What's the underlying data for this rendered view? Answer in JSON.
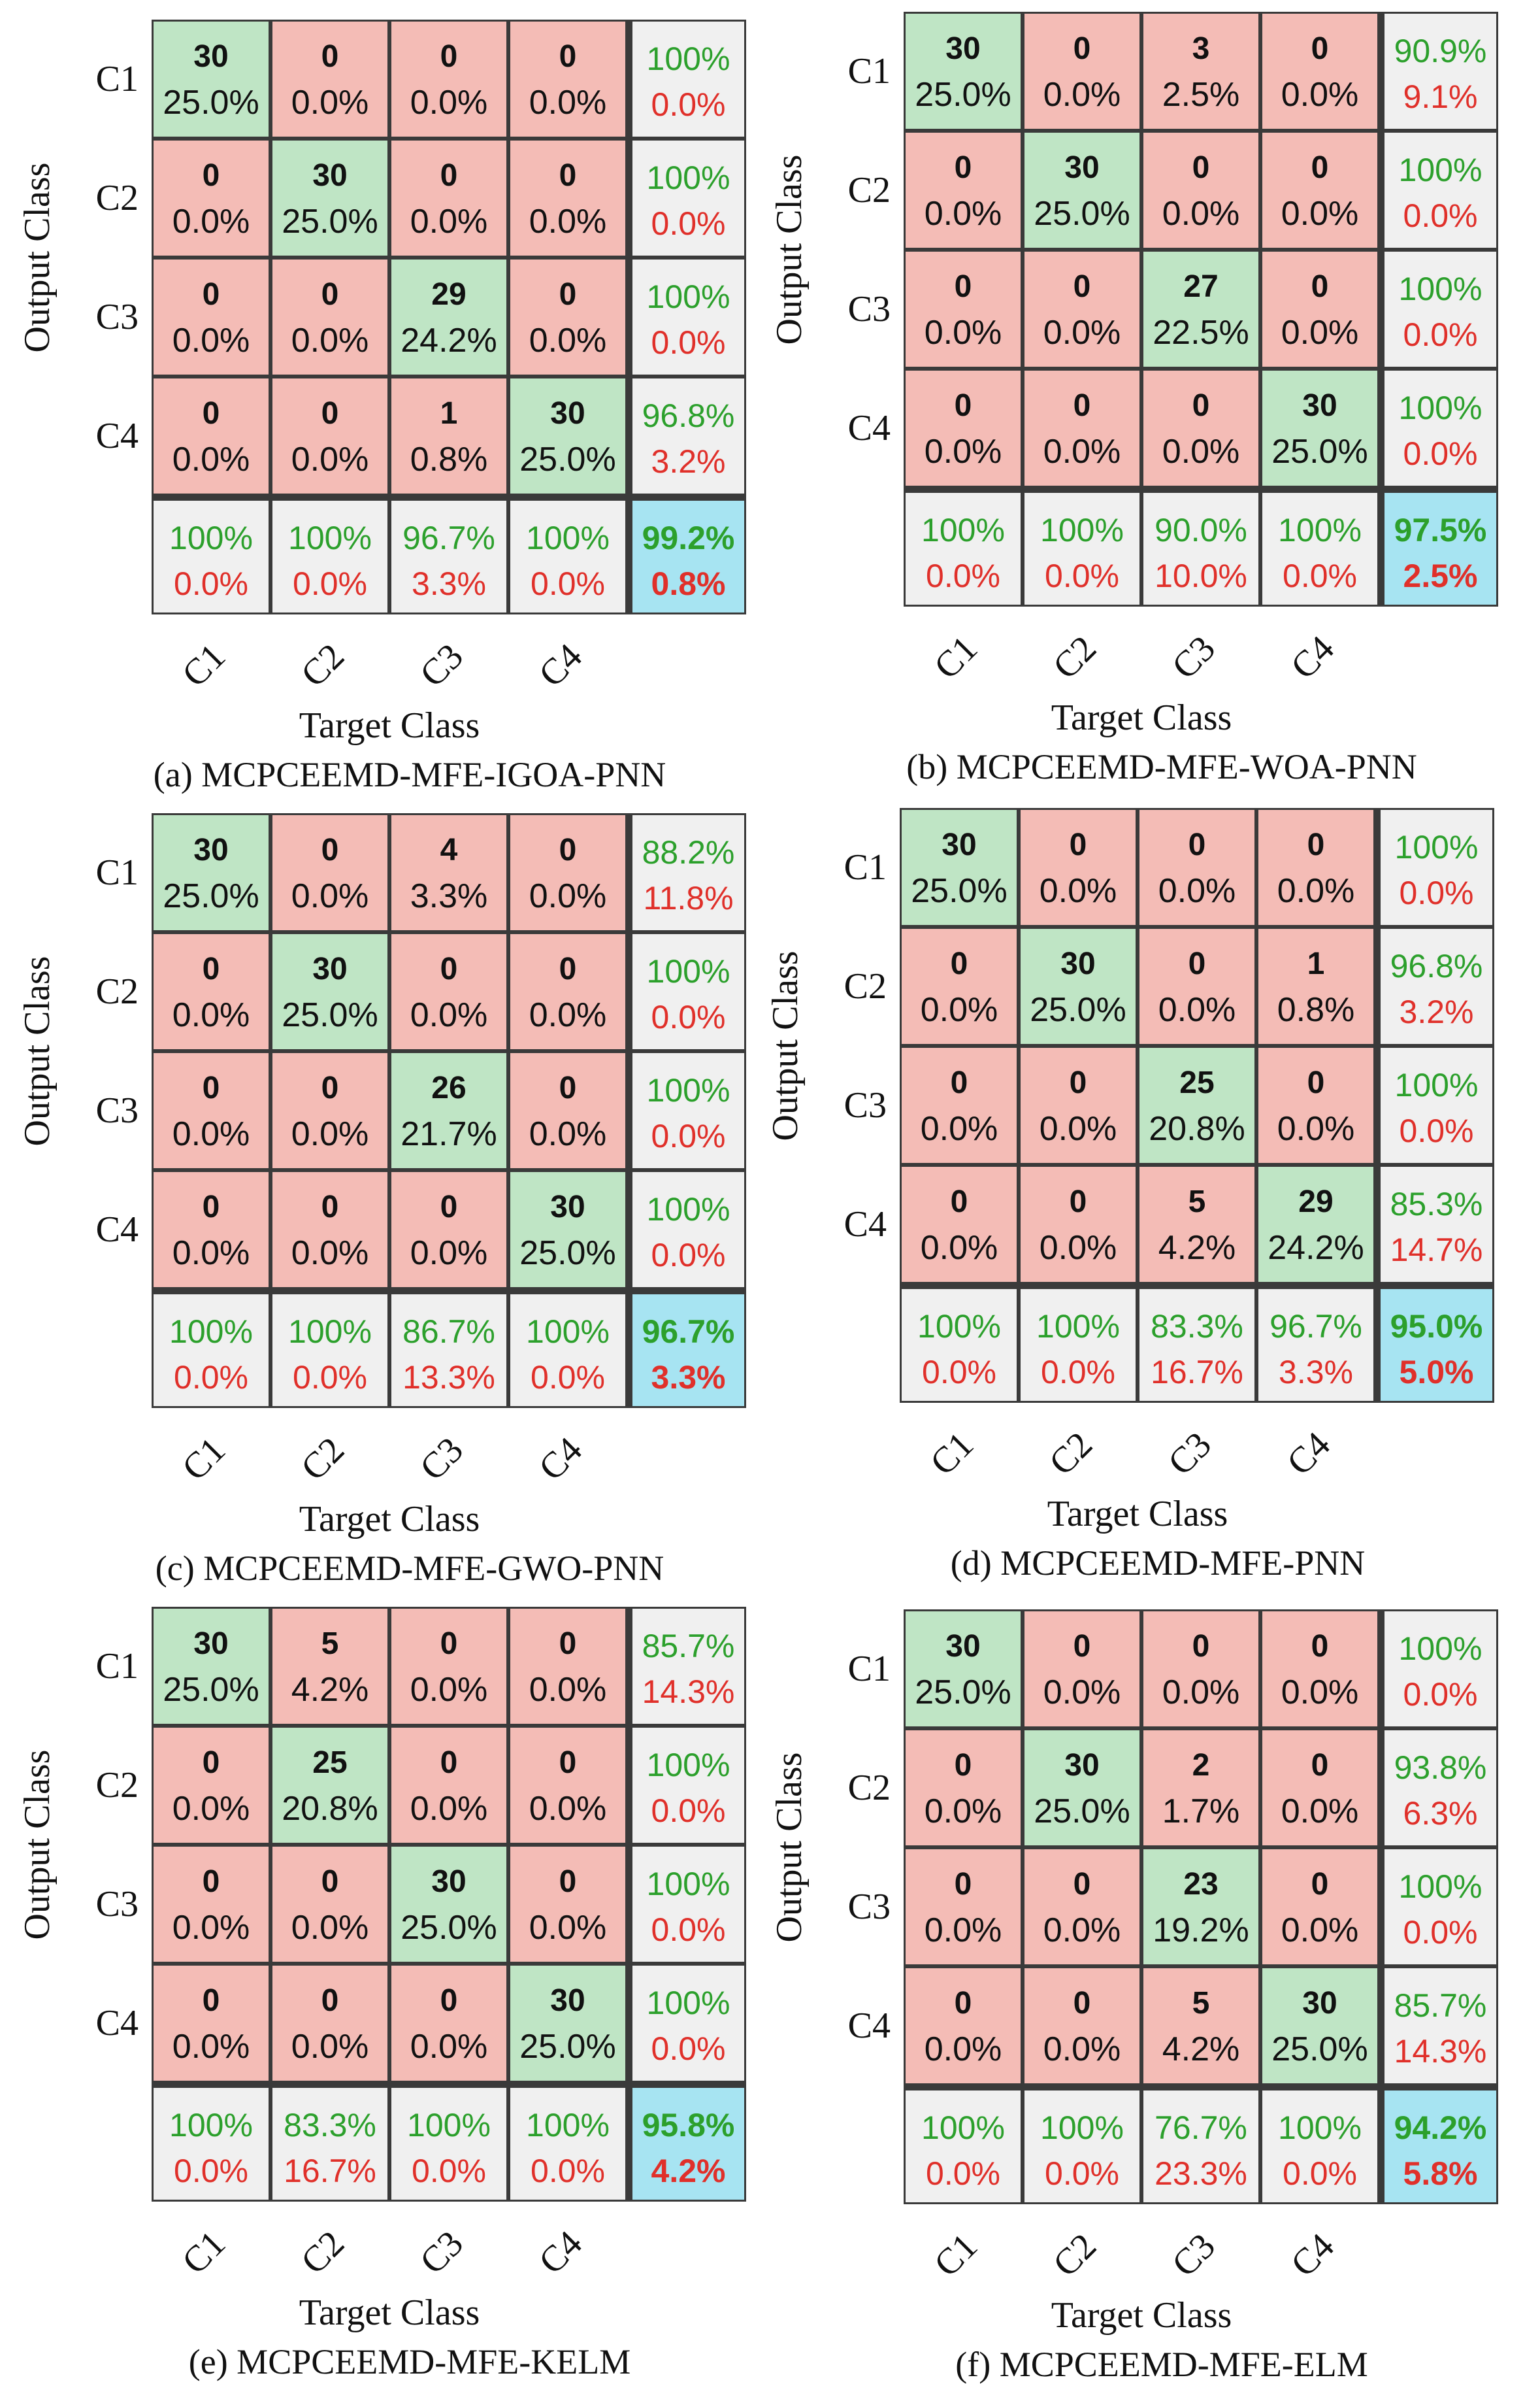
{
  "chart_data": [
    {
      "type": "table",
      "title": "(a) MCPCEEMD-MFE-IGOA-PNN",
      "ylabel": "Output Class",
      "xlabel": "Target Class",
      "row_labels": [
        "C1",
        "C2",
        "C3",
        "C4"
      ],
      "col_labels": [
        "C1",
        "C2",
        "C3",
        "C4"
      ],
      "cells": [
        [
          {
            "n": "30",
            "p": "25.0%"
          },
          {
            "n": "0",
            "p": "0.0%"
          },
          {
            "n": "0",
            "p": "0.0%"
          },
          {
            "n": "0",
            "p": "0.0%"
          }
        ],
        [
          {
            "n": "0",
            "p": "0.0%"
          },
          {
            "n": "30",
            "p": "25.0%"
          },
          {
            "n": "0",
            "p": "0.0%"
          },
          {
            "n": "0",
            "p": "0.0%"
          }
        ],
        [
          {
            "n": "0",
            "p": "0.0%"
          },
          {
            "n": "0",
            "p": "0.0%"
          },
          {
            "n": "29",
            "p": "24.2%"
          },
          {
            "n": "0",
            "p": "0.0%"
          }
        ],
        [
          {
            "n": "0",
            "p": "0.0%"
          },
          {
            "n": "0",
            "p": "0.0%"
          },
          {
            "n": "1",
            "p": "0.8%"
          },
          {
            "n": "30",
            "p": "25.0%"
          }
        ]
      ],
      "row_summary": [
        [
          "100%",
          "0.0%"
        ],
        [
          "100%",
          "0.0%"
        ],
        [
          "100%",
          "0.0%"
        ],
        [
          "96.8%",
          "3.2%"
        ]
      ],
      "col_summary": [
        [
          "100%",
          "0.0%"
        ],
        [
          "100%",
          "0.0%"
        ],
        [
          "96.7%",
          "3.3%"
        ],
        [
          "100%",
          "0.0%"
        ]
      ],
      "overall": [
        "99.2%",
        "0.8%"
      ]
    },
    {
      "type": "table",
      "title": "(b) MCPCEEMD-MFE-WOA-PNN",
      "ylabel": "Output Class",
      "xlabel": "Target Class",
      "row_labels": [
        "C1",
        "C2",
        "C3",
        "C4"
      ],
      "col_labels": [
        "C1",
        "C2",
        "C3",
        "C4"
      ],
      "cells": [
        [
          {
            "n": "30",
            "p": "25.0%"
          },
          {
            "n": "0",
            "p": "0.0%"
          },
          {
            "n": "3",
            "p": "2.5%"
          },
          {
            "n": "0",
            "p": "0.0%"
          }
        ],
        [
          {
            "n": "0",
            "p": "0.0%"
          },
          {
            "n": "30",
            "p": "25.0%"
          },
          {
            "n": "0",
            "p": "0.0%"
          },
          {
            "n": "0",
            "p": "0.0%"
          }
        ],
        [
          {
            "n": "0",
            "p": "0.0%"
          },
          {
            "n": "0",
            "p": "0.0%"
          },
          {
            "n": "27",
            "p": "22.5%"
          },
          {
            "n": "0",
            "p": "0.0%"
          }
        ],
        [
          {
            "n": "0",
            "p": "0.0%"
          },
          {
            "n": "0",
            "p": "0.0%"
          },
          {
            "n": "0",
            "p": "0.0%"
          },
          {
            "n": "30",
            "p": "25.0%"
          }
        ]
      ],
      "row_summary": [
        [
          "90.9%",
          "9.1%"
        ],
        [
          "100%",
          "0.0%"
        ],
        [
          "100%",
          "0.0%"
        ],
        [
          "100%",
          "0.0%"
        ]
      ],
      "col_summary": [
        [
          "100%",
          "0.0%"
        ],
        [
          "100%",
          "0.0%"
        ],
        [
          "90.0%",
          "10.0%"
        ],
        [
          "100%",
          "0.0%"
        ]
      ],
      "overall": [
        "97.5%",
        "2.5%"
      ]
    },
    {
      "type": "table",
      "title": "(c) MCPCEEMD-MFE-GWO-PNN",
      "ylabel": "Output Class",
      "xlabel": "Target Class",
      "row_labels": [
        "C1",
        "C2",
        "C3",
        "C4"
      ],
      "col_labels": [
        "C1",
        "C2",
        "C3",
        "C4"
      ],
      "cells": [
        [
          {
            "n": "30",
            "p": "25.0%"
          },
          {
            "n": "0",
            "p": "0.0%"
          },
          {
            "n": "4",
            "p": "3.3%"
          },
          {
            "n": "0",
            "p": "0.0%"
          }
        ],
        [
          {
            "n": "0",
            "p": "0.0%"
          },
          {
            "n": "30",
            "p": "25.0%"
          },
          {
            "n": "0",
            "p": "0.0%"
          },
          {
            "n": "0",
            "p": "0.0%"
          }
        ],
        [
          {
            "n": "0",
            "p": "0.0%"
          },
          {
            "n": "0",
            "p": "0.0%"
          },
          {
            "n": "26",
            "p": "21.7%"
          },
          {
            "n": "0",
            "p": "0.0%"
          }
        ],
        [
          {
            "n": "0",
            "p": "0.0%"
          },
          {
            "n": "0",
            "p": "0.0%"
          },
          {
            "n": "0",
            "p": "0.0%"
          },
          {
            "n": "30",
            "p": "25.0%"
          }
        ]
      ],
      "row_summary": [
        [
          "88.2%",
          "11.8%"
        ],
        [
          "100%",
          "0.0%"
        ],
        [
          "100%",
          "0.0%"
        ],
        [
          "100%",
          "0.0%"
        ]
      ],
      "col_summary": [
        [
          "100%",
          "0.0%"
        ],
        [
          "100%",
          "0.0%"
        ],
        [
          "86.7%",
          "13.3%"
        ],
        [
          "100%",
          "0.0%"
        ]
      ],
      "overall": [
        "96.7%",
        "3.3%"
      ]
    },
    {
      "type": "table",
      "title": "(d) MCPCEEMD-MFE-PNN",
      "ylabel": "Output Class",
      "xlabel": "Target Class",
      "row_labels": [
        "C1",
        "C2",
        "C3",
        "C4"
      ],
      "col_labels": [
        "C1",
        "C2",
        "C3",
        "C4"
      ],
      "cells": [
        [
          {
            "n": "30",
            "p": "25.0%"
          },
          {
            "n": "0",
            "p": "0.0%"
          },
          {
            "n": "0",
            "p": "0.0%"
          },
          {
            "n": "0",
            "p": "0.0%"
          }
        ],
        [
          {
            "n": "0",
            "p": "0.0%"
          },
          {
            "n": "30",
            "p": "25.0%"
          },
          {
            "n": "0",
            "p": "0.0%"
          },
          {
            "n": "1",
            "p": "0.8%"
          }
        ],
        [
          {
            "n": "0",
            "p": "0.0%"
          },
          {
            "n": "0",
            "p": "0.0%"
          },
          {
            "n": "25",
            "p": "20.8%"
          },
          {
            "n": "0",
            "p": "0.0%"
          }
        ],
        [
          {
            "n": "0",
            "p": "0.0%"
          },
          {
            "n": "0",
            "p": "0.0%"
          },
          {
            "n": "5",
            "p": "4.2%"
          },
          {
            "n": "29",
            "p": "24.2%"
          }
        ]
      ],
      "row_summary": [
        [
          "100%",
          "0.0%"
        ],
        [
          "96.8%",
          "3.2%"
        ],
        [
          "100%",
          "0.0%"
        ],
        [
          "85.3%",
          "14.7%"
        ]
      ],
      "col_summary": [
        [
          "100%",
          "0.0%"
        ],
        [
          "100%",
          "0.0%"
        ],
        [
          "83.3%",
          "16.7%"
        ],
        [
          "96.7%",
          "3.3%"
        ]
      ],
      "overall": [
        "95.0%",
        "5.0%"
      ]
    },
    {
      "type": "table",
      "title": "(e) MCPCEEMD-MFE-KELM",
      "ylabel": "Output Class",
      "xlabel": "Target Class",
      "row_labels": [
        "C1",
        "C2",
        "C3",
        "C4"
      ],
      "col_labels": [
        "C1",
        "C2",
        "C3",
        "C4"
      ],
      "cells": [
        [
          {
            "n": "30",
            "p": "25.0%"
          },
          {
            "n": "5",
            "p": "4.2%"
          },
          {
            "n": "0",
            "p": "0.0%"
          },
          {
            "n": "0",
            "p": "0.0%"
          }
        ],
        [
          {
            "n": "0",
            "p": "0.0%"
          },
          {
            "n": "25",
            "p": "20.8%"
          },
          {
            "n": "0",
            "p": "0.0%"
          },
          {
            "n": "0",
            "p": "0.0%"
          }
        ],
        [
          {
            "n": "0",
            "p": "0.0%"
          },
          {
            "n": "0",
            "p": "0.0%"
          },
          {
            "n": "30",
            "p": "25.0%"
          },
          {
            "n": "0",
            "p": "0.0%"
          }
        ],
        [
          {
            "n": "0",
            "p": "0.0%"
          },
          {
            "n": "0",
            "p": "0.0%"
          },
          {
            "n": "0",
            "p": "0.0%"
          },
          {
            "n": "30",
            "p": "25.0%"
          }
        ]
      ],
      "row_summary": [
        [
          "85.7%",
          "14.3%"
        ],
        [
          "100%",
          "0.0%"
        ],
        [
          "100%",
          "0.0%"
        ],
        [
          "100%",
          "0.0%"
        ]
      ],
      "col_summary": [
        [
          "100%",
          "0.0%"
        ],
        [
          "83.3%",
          "16.7%"
        ],
        [
          "100%",
          "0.0%"
        ],
        [
          "100%",
          "0.0%"
        ]
      ],
      "overall": [
        "95.8%",
        "4.2%"
      ]
    },
    {
      "type": "table",
      "title": "(f) MCPCEEMD-MFE-ELM",
      "ylabel": "Output Class",
      "xlabel": "Target Class",
      "row_labels": [
        "C1",
        "C2",
        "C3",
        "C4"
      ],
      "col_labels": [
        "C1",
        "C2",
        "C3",
        "C4"
      ],
      "cells": [
        [
          {
            "n": "30",
            "p": "25.0%"
          },
          {
            "n": "0",
            "p": "0.0%"
          },
          {
            "n": "0",
            "p": "0.0%"
          },
          {
            "n": "0",
            "p": "0.0%"
          }
        ],
        [
          {
            "n": "0",
            "p": "0.0%"
          },
          {
            "n": "30",
            "p": "25.0%"
          },
          {
            "n": "2",
            "p": "1.7%"
          },
          {
            "n": "0",
            "p": "0.0%"
          }
        ],
        [
          {
            "n": "0",
            "p": "0.0%"
          },
          {
            "n": "0",
            "p": "0.0%"
          },
          {
            "n": "23",
            "p": "19.2%"
          },
          {
            "n": "0",
            "p": "0.0%"
          }
        ],
        [
          {
            "n": "0",
            "p": "0.0%"
          },
          {
            "n": "0",
            "p": "0.0%"
          },
          {
            "n": "5",
            "p": "4.2%"
          },
          {
            "n": "30",
            "p": "25.0%"
          }
        ]
      ],
      "row_summary": [
        [
          "100%",
          "0.0%"
        ],
        [
          "93.8%",
          "6.3%"
        ],
        [
          "100%",
          "0.0%"
        ],
        [
          "85.7%",
          "14.3%"
        ]
      ],
      "col_summary": [
        [
          "100%",
          "0.0%"
        ],
        [
          "100%",
          "0.0%"
        ],
        [
          "76.7%",
          "23.3%"
        ],
        [
          "100%",
          "0.0%"
        ]
      ],
      "overall": [
        "94.2%",
        "5.8%"
      ]
    }
  ]
}
